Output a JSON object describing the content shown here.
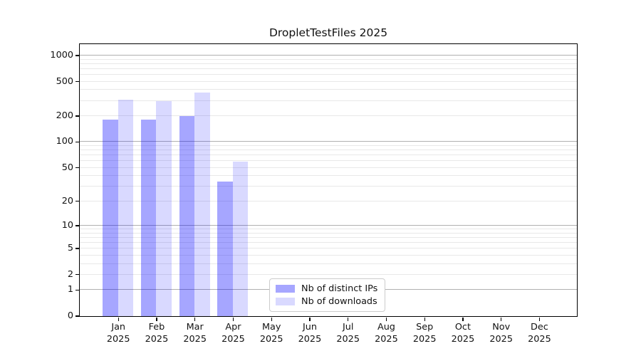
{
  "chart_data": {
    "type": "bar",
    "title": "DropletTestFiles 2025",
    "y_scale": "log(1+x)",
    "grid": "horizontal major+minor, on",
    "legend_position": "lower-center inside axes",
    "categories": [
      "Jan",
      "Feb",
      "Mar",
      "Apr",
      "May",
      "Jun",
      "Jul",
      "Aug",
      "Sep",
      "Oct",
      "Nov",
      "Dec"
    ],
    "x_tick_year": "2025",
    "y_ticks": [
      0,
      1,
      2,
      5,
      10,
      20,
      50,
      100,
      200,
      500,
      1000
    ],
    "y_major_gridlines": [
      1,
      10,
      100,
      1000
    ],
    "y_minor_gridlines": [
      2,
      3,
      4,
      5,
      6,
      7,
      8,
      9,
      20,
      30,
      40,
      50,
      60,
      70,
      80,
      90,
      200,
      300,
      400,
      500,
      600,
      700,
      800,
      900
    ],
    "ylim_top_approx": 1350,
    "series": [
      {
        "name": "Nb of distinct IPs",
        "color": "rgba(0,0,255,0.35)",
        "values": [
          181,
          181,
          199,
          34,
          null,
          null,
          null,
          null,
          null,
          null,
          null,
          null
        ]
      },
      {
        "name": "Nb of downloads",
        "color": "rgba(0,0,255,0.15)",
        "values": [
          307,
          297,
          368,
          59,
          null,
          null,
          null,
          null,
          null,
          null,
          null,
          null
        ]
      }
    ],
    "colors": {
      "major_grid": "#b0b0b0",
      "minor_grid": "#e8e8e8",
      "spine": "#000000",
      "text": "#111111",
      "background": "#ffffff"
    }
  }
}
